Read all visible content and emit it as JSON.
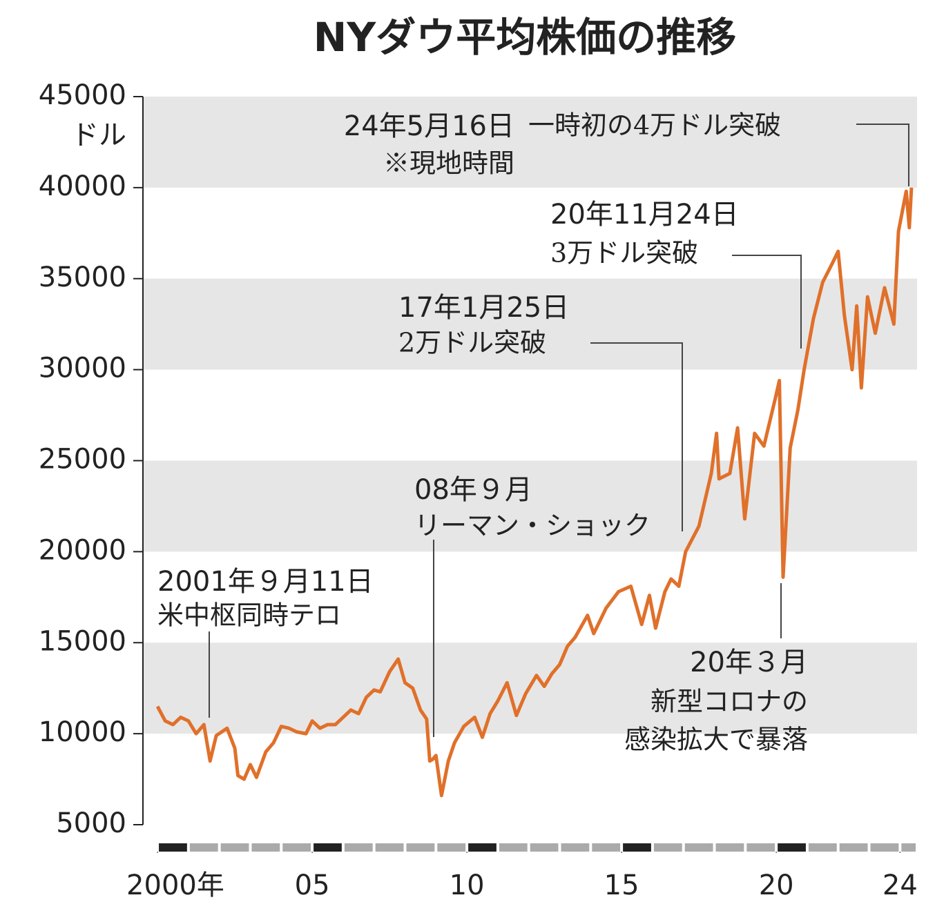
{
  "chart_data": {
    "type": "line",
    "title": "NYダウ平均株価の推移",
    "y_unit": "ドル",
    "x": [
      2000.0,
      2000.25,
      2000.5,
      2000.75,
      2001.0,
      2001.25,
      2001.5,
      2001.7,
      2001.9,
      2002.25,
      2002.5,
      2002.6,
      2002.8,
      2003.0,
      2003.2,
      2003.5,
      2003.75,
      2004.0,
      2004.25,
      2004.5,
      2004.8,
      2005.0,
      2005.25,
      2005.5,
      2005.75,
      2006.0,
      2006.25,
      2006.5,
      2006.75,
      2007.0,
      2007.2,
      2007.5,
      2007.78,
      2008.0,
      2008.25,
      2008.5,
      2008.7,
      2008.8,
      2008.9,
      2009.0,
      2009.18,
      2009.4,
      2009.6,
      2009.9,
      2010.25,
      2010.5,
      2010.75,
      2011.0,
      2011.3,
      2011.6,
      2011.9,
      2012.25,
      2012.5,
      2012.75,
      2013.0,
      2013.25,
      2013.5,
      2013.9,
      2014.1,
      2014.5,
      2014.9,
      2015.3,
      2015.65,
      2015.9,
      2016.1,
      2016.4,
      2016.6,
      2016.85,
      2017.07,
      2017.5,
      2017.9,
      2018.07,
      2018.15,
      2018.5,
      2018.75,
      2018.98,
      2019.3,
      2019.6,
      2019.98,
      2020.1,
      2020.22,
      2020.45,
      2020.7,
      2020.9,
      2021.2,
      2021.5,
      2021.8,
      2022.0,
      2022.2,
      2022.45,
      2022.6,
      2022.75,
      2022.95,
      2023.2,
      2023.5,
      2023.8,
      2023.95,
      2024.2,
      2024.3,
      2024.37
    ],
    "series": [
      {
        "name": "NYダウ",
        "color": "#e0702a",
        "values": [
          11500,
          10700,
          10500,
          10900,
          10700,
          10000,
          10500,
          8500,
          9900,
          10300,
          9200,
          7700,
          7500,
          8300,
          7600,
          9000,
          9500,
          10400,
          10300,
          10100,
          10000,
          10700,
          10300,
          10500,
          10500,
          10900,
          11300,
          11100,
          12000,
          12400,
          12300,
          13400,
          14100,
          12800,
          12500,
          11300,
          10800,
          8500,
          8600,
          8800,
          6600,
          8500,
          9500,
          10400,
          10900,
          9800,
          11100,
          11800,
          12800,
          11000,
          12200,
          13200,
          12600,
          13300,
          13800,
          14800,
          15300,
          16500,
          15500,
          16900,
          17800,
          18100,
          16000,
          17600,
          15800,
          17800,
          18500,
          18100,
          20000,
          21400,
          24300,
          26500,
          24000,
          24300,
          26800,
          21800,
          26500,
          25800,
          28500,
          29400,
          18600,
          25700,
          27800,
          30000,
          32800,
          34800,
          35800,
          36500,
          33000,
          30000,
          33500,
          29000,
          34000,
          32000,
          34500,
          32500,
          37600,
          39800,
          37800,
          40000
        ]
      }
    ],
    "xlim": [
      1999.53,
      2024.55
    ],
    "xticks": [
      {
        "value": 2000,
        "label": "2000年"
      },
      {
        "value": 2005,
        "label": "05"
      },
      {
        "value": 2010,
        "label": "10"
      },
      {
        "value": 2015,
        "label": "15"
      },
      {
        "value": 2020,
        "label": "20"
      },
      {
        "value": 2024,
        "label": "24"
      }
    ],
    "ylim": [
      5000,
      45000
    ],
    "yticks": [
      5000,
      10000,
      15000,
      20000,
      25000,
      30000,
      35000,
      40000,
      45000
    ],
    "bands": true,
    "annotations": [
      {
        "date": "24年5月16日",
        "note": "※現地時間",
        "text": "一時初の4万ドル突破"
      },
      {
        "date": "20年11月24日",
        "text": "3万ドル突破"
      },
      {
        "date": "17年1月25日",
        "text": "2万ドル突破"
      },
      {
        "date": "08年９月",
        "text": "リーマン・ショック"
      },
      {
        "date": "2001年９月11日",
        "text": "米中枢同時テロ"
      },
      {
        "date": "20年３月",
        "text": "新型コロナの",
        "text2": "感染拡大で暴落"
      }
    ]
  }
}
